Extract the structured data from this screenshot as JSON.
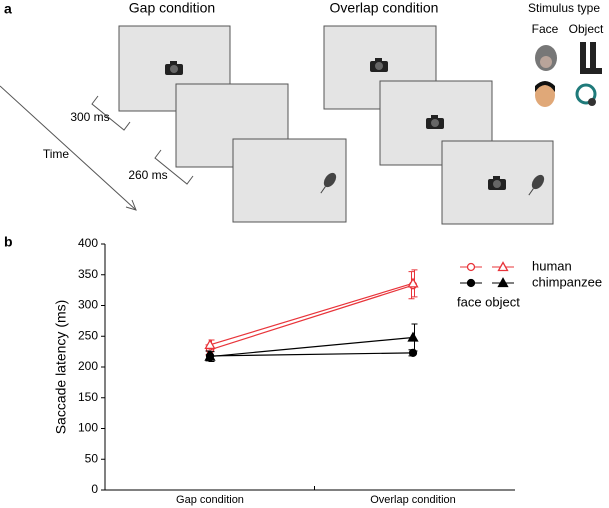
{
  "panel_a": {
    "label": "a",
    "gap_title": "Gap condition",
    "overlap_title": "Overlap condition",
    "stimulus_title": "Stimulus type",
    "face": "Face",
    "object": "Object",
    "interval_1": "300 ms",
    "interval_2": "260 ms",
    "time": "Time"
  },
  "chart_data": {
    "type": "line",
    "label": "b",
    "y_label": "Saccade latency (ms)",
    "categories": [
      "Gap condition",
      "Overlap condition"
    ],
    "ylim": [
      0,
      400
    ],
    "yticks": [
      0,
      50,
      100,
      150,
      200,
      250,
      300,
      350,
      400
    ],
    "series": [
      {
        "color": "#e8343a",
        "marker": "circle",
        "filled": false,
        "values": [
          228,
          333
        ],
        "errors": [
          8,
          22
        ]
      },
      {
        "color": "#e8343a",
        "marker": "triangle",
        "filled": false,
        "values": [
          236,
          336
        ],
        "errors": [
          8,
          22
        ]
      },
      {
        "color": "#000000",
        "marker": "circle",
        "filled": true,
        "values": [
          218,
          223
        ],
        "errors": [
          8,
          5
        ]
      },
      {
        "color": "#000000",
        "marker": "triangle",
        "filled": true,
        "values": [
          217,
          248
        ],
        "errors": [
          8,
          22
        ]
      }
    ],
    "legend": [
      {
        "label": "human",
        "color": "#e8343a",
        "filled": false
      },
      {
        "label": "chimpanzee",
        "color": "#000000",
        "filled": true
      }
    ],
    "legend_columns": "face object"
  }
}
